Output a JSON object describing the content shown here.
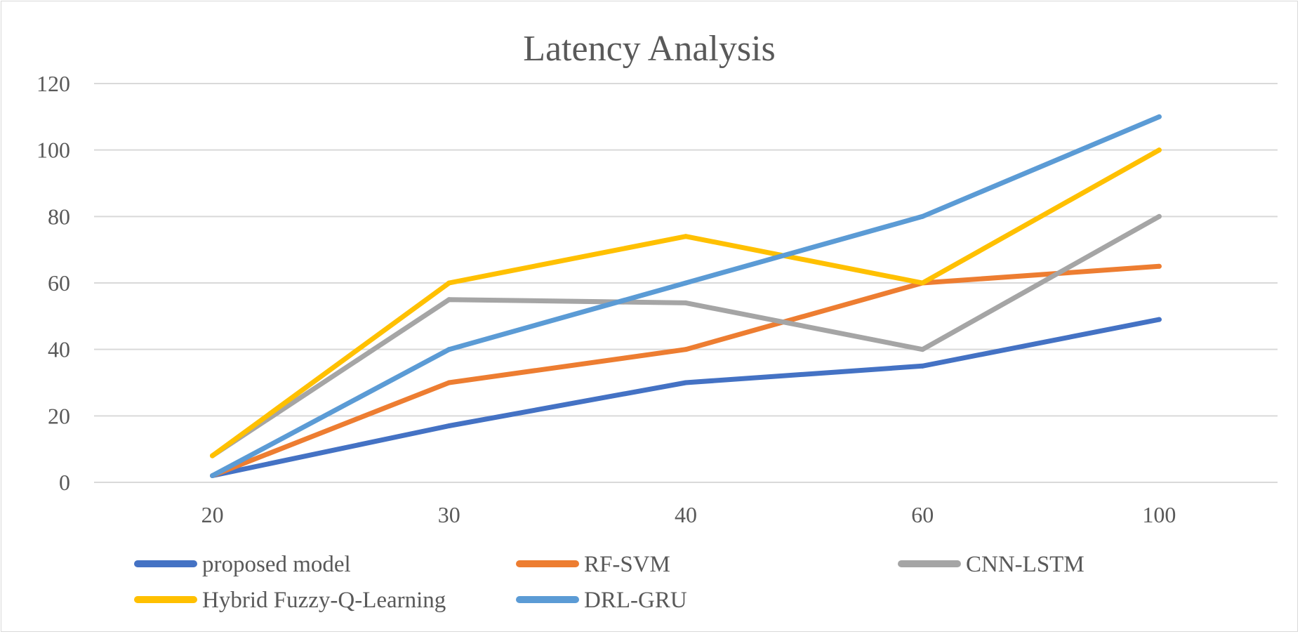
{
  "chart_data": {
    "type": "line",
    "title": "Latency Analysis",
    "xlabel": "",
    "ylabel": "",
    "categories": [
      "20",
      "30",
      "40",
      "60",
      "100"
    ],
    "ylim": [
      0,
      120
    ],
    "yticks": [
      "0",
      "20",
      "40",
      "60",
      "80",
      "100",
      "120"
    ],
    "grid": true,
    "legend_position": "bottom",
    "series": [
      {
        "name": "proposed model",
        "color": "#4472C4",
        "values": [
          2,
          17,
          30,
          35,
          49
        ]
      },
      {
        "name": "RF-SVM",
        "color": "#ED7D31",
        "values": [
          2,
          30,
          40,
          60,
          65
        ]
      },
      {
        "name": "CNN-LSTM",
        "color": "#A5A5A5",
        "values": [
          8,
          55,
          54,
          40,
          80
        ]
      },
      {
        "name": "Hybrid Fuzzy-Q-Learning",
        "color": "#FFC000",
        "values": [
          8,
          60,
          74,
          60,
          100
        ]
      },
      {
        "name": "DRL-GRU",
        "color": "#5B9BD5",
        "values": [
          2,
          40,
          60,
          80,
          110
        ]
      }
    ]
  }
}
